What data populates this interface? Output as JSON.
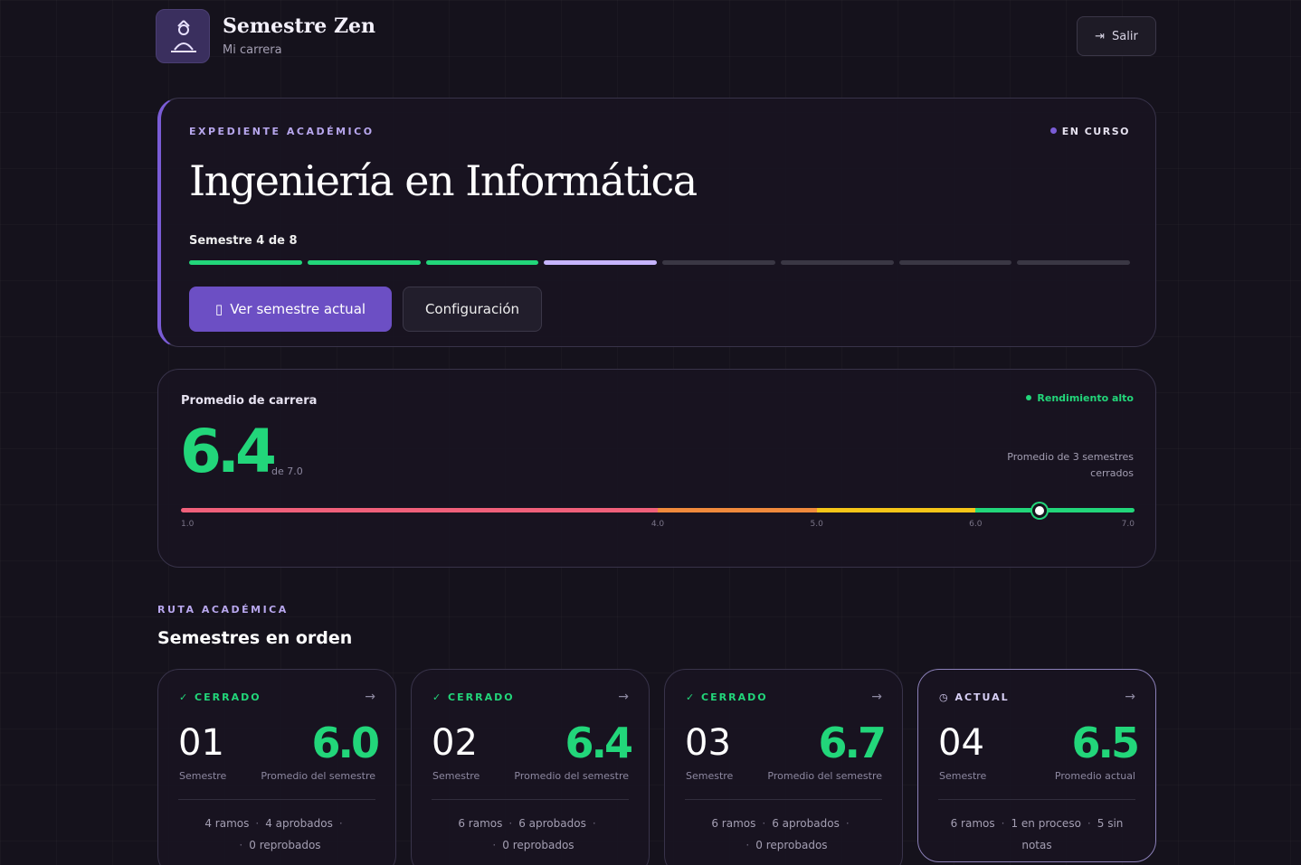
{
  "header": {
    "title": "Semestre Zen",
    "subtitle": "Mi carrera",
    "logout": "Salir"
  },
  "record": {
    "eyebrow": "EXPEDIENTE ACADÉMICO",
    "status": "EN CURSO",
    "title": "Ingeniería en Informática",
    "progress_label": "Semestre 4 de 8",
    "primary_button": "Ver semestre actual",
    "secondary_button": "Configuración"
  },
  "average": {
    "label": "Promedio de carrera",
    "value": 6.4,
    "scale_note": "de 7.0",
    "badge": "Rendimiento alto",
    "note": "Promedio de 3 semestres cerrados",
    "ticks": [
      {
        "value": 1,
        "label": "1.0"
      },
      {
        "value": 4,
        "label": "4.0"
      },
      {
        "value": 5,
        "label": "5.0"
      },
      {
        "value": 6,
        "label": "6.0"
      },
      {
        "value": 7,
        "label": "7.0"
      }
    ]
  },
  "route": {
    "eyebrow": "RUTA ACADÉMICA",
    "title": "Semestres en orden",
    "semesters": [
      {
        "status": "CERRADO",
        "number": "01",
        "number_label": "Semestre",
        "average": "6.0",
        "average_label": "Promedio del semestre",
        "stats": [
          "4 ramos",
          "4 aprobados",
          "0 reprobados"
        ]
      },
      {
        "status": "CERRADO",
        "number": "02",
        "number_label": "Semestre",
        "average": "6.4",
        "average_label": "Promedio del semestre",
        "stats": [
          "6 ramos",
          "6 aprobados",
          "0 reprobados"
        ]
      },
      {
        "status": "CERRADO",
        "number": "03",
        "number_label": "Semestre",
        "average": "6.7",
        "average_label": "Promedio del semestre",
        "stats": [
          "6 ramos",
          "6 aprobados",
          "0 reprobados"
        ]
      },
      {
        "status": "ACTUAL",
        "number": "04",
        "number_label": "Semestre",
        "average": "6.5",
        "average_label": "Promedio actual",
        "stats": [
          "6 ramos",
          "1 en proceso",
          "5 sin notas"
        ]
      }
    ]
  }
}
